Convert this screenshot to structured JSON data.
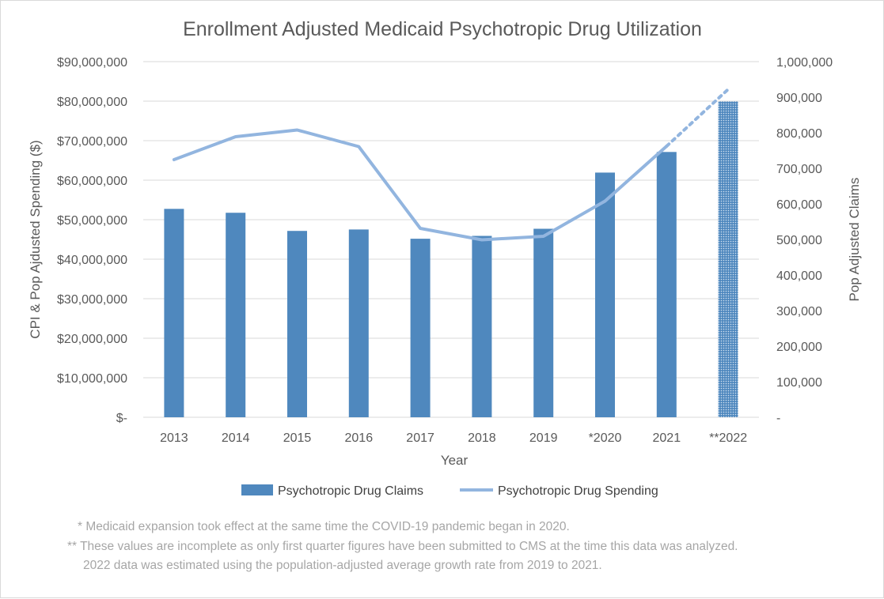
{
  "chart_data": {
    "type": "bar",
    "title": "Enrollment Adjusted Medicaid Psychotropic Drug Utilization",
    "xlabel": "Year",
    "ylabel_left": "CPI & Pop Ajdusted Spending ($)",
    "ylabel_right": "Pop Adjusted Claims",
    "categories": [
      "2013",
      "2014",
      "2015",
      "2016",
      "2017",
      "2018",
      "2019",
      "*2020",
      "2021",
      "**2022"
    ],
    "left_axis": {
      "min": 0,
      "max": 90000000,
      "step": 10000000,
      "tick_labels": [
        "$-",
        "$10,000,000",
        "$20,000,000",
        "$30,000,000",
        "$40,000,000",
        "$50,000,000",
        "$60,000,000",
        "$70,000,000",
        "$80,000,000",
        "$90,000,000"
      ]
    },
    "right_axis": {
      "min": 0,
      "max": 1000000,
      "step": 100000,
      "tick_labels": [
        "-",
        "100,000",
        "200,000",
        "300,000",
        "400,000",
        "500,000",
        "600,000",
        "700,000",
        "800,000",
        "900,000",
        "1,000,000"
      ]
    },
    "gridlines": true,
    "legend_position": "bottom",
    "series": [
      {
        "name": "Psychotropic Drug Claims",
        "type": "bar",
        "axis": "right",
        "color": "#4f88be",
        "values": [
          586000,
          575000,
          524000,
          528000,
          502000,
          510000,
          530000,
          688000,
          746000,
          888000
        ],
        "estimated_index": 9
      },
      {
        "name": "Psychotropic Drug Spending",
        "type": "line",
        "axis": "left",
        "color": "#92b5df",
        "values": [
          65200000,
          71000000,
          72700000,
          68500000,
          47800000,
          44900000,
          45800000,
          54700000,
          68600000,
          83000000
        ],
        "estimated_index": 9
      }
    ]
  },
  "notes": [
    "* Medicaid expansion took effect at the same time the COVID-19 pandemic began in 2020.",
    "** These values are incomplete as only first quarter figures have been submitted to CMS at the time this data was analyzed.",
    "2022 data was estimated using the population-adjusted average growth rate from 2019 to 2021."
  ]
}
